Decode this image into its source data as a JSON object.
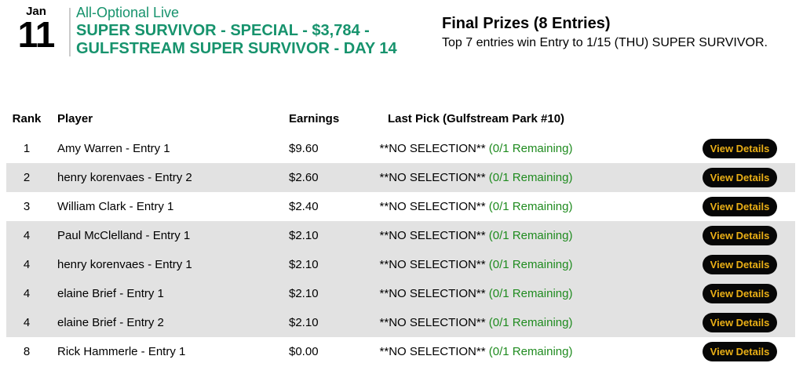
{
  "event": {
    "month": "Jan",
    "day": "11",
    "type_label": "All-Optional Live",
    "title_line1": "SUPER SURVIVOR - SPECIAL - $3,784 -",
    "title_line2": "GULFSTREAM SUPER SURVIVOR - DAY 14"
  },
  "prizes": {
    "heading": "Final Prizes (8 Entries)",
    "description": "Top 7 entries win Entry to 1/15 (THU) SUPER SURVIVOR."
  },
  "leaderboard": {
    "columns": {
      "rank": "Rank",
      "player": "Player",
      "earnings": "Earnings",
      "last_pick": "Last Pick (Gulfstream Park #10)"
    },
    "action_label": "View Details",
    "rows": [
      {
        "rank": "1",
        "player": "Amy Warren - Entry 1",
        "earnings": "$9.60",
        "pick": "**NO SELECTION**",
        "remaining": "(0/1 Remaining)"
      },
      {
        "rank": "2",
        "player": "henry korenvaes - Entry 2",
        "earnings": "$2.60",
        "pick": "**NO SELECTION**",
        "remaining": "(0/1 Remaining)"
      },
      {
        "rank": "3",
        "player": "William Clark - Entry 1",
        "earnings": "$2.40",
        "pick": "**NO SELECTION**",
        "remaining": "(0/1 Remaining)"
      },
      {
        "rank": "4",
        "player": "Paul McClelland - Entry 1",
        "earnings": "$2.10",
        "pick": "**NO SELECTION**",
        "remaining": "(0/1 Remaining)"
      },
      {
        "rank": "4",
        "player": "henry korenvaes - Entry 1",
        "earnings": "$2.10",
        "pick": "**NO SELECTION**",
        "remaining": "(0/1 Remaining)"
      },
      {
        "rank": "4",
        "player": "elaine Brief - Entry 1",
        "earnings": "$2.10",
        "pick": "**NO SELECTION**",
        "remaining": "(0/1 Remaining)"
      },
      {
        "rank": "4",
        "player": "elaine Brief - Entry 2",
        "earnings": "$2.10",
        "pick": "**NO SELECTION**",
        "remaining": "(0/1 Remaining)"
      },
      {
        "rank": "8",
        "player": "Rick Hammerle - Entry 1",
        "earnings": "$0.00",
        "pick": "**NO SELECTION**",
        "remaining": "(0/1 Remaining)"
      }
    ]
  },
  "colors": {
    "brand_green": "#17936d",
    "remaining_green": "#1f8b1f",
    "stripe": "#e2e2e2",
    "button_bg": "#070707",
    "button_text": "#eaaf16"
  }
}
